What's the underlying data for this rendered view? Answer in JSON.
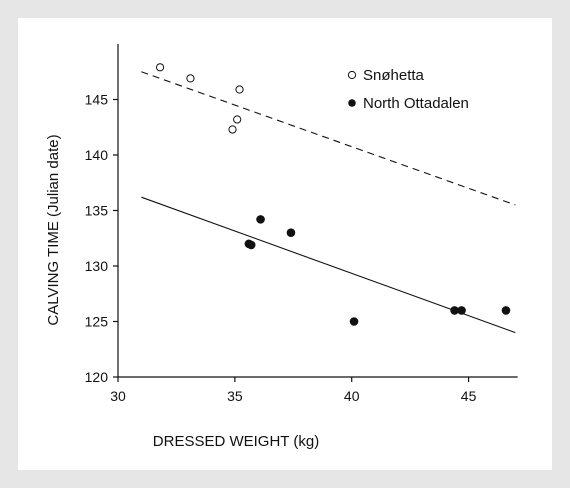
{
  "chart_data": {
    "type": "scatter",
    "xlabel": "DRESSED WEIGHT (kg)",
    "ylabel": "CALVING TIME (Julian date)",
    "xlim": [
      30,
      47.5
    ],
    "ylim": [
      120,
      150
    ],
    "xticks": [
      30,
      35,
      40,
      45
    ],
    "yticks": [
      120,
      125,
      130,
      135,
      140,
      145
    ],
    "grid": false,
    "legend_position": "top-right",
    "series": [
      {
        "name": "Snøhetta",
        "marker": "open-circle",
        "points": [
          {
            "x": 31.8,
            "y": 147.9
          },
          {
            "x": 33.1,
            "y": 146.9
          },
          {
            "x": 35.2,
            "y": 145.9
          },
          {
            "x": 35.1,
            "y": 143.2
          },
          {
            "x": 34.9,
            "y": 142.3
          }
        ],
        "trend": {
          "x": [
            31,
            47
          ],
          "y": [
            147.5,
            135.5
          ],
          "style": "dashed"
        }
      },
      {
        "name": "North Ottadalen",
        "marker": "filled-circle",
        "points": [
          {
            "x": 35.6,
            "y": 132.0
          },
          {
            "x": 35.7,
            "y": 131.9
          },
          {
            "x": 36.1,
            "y": 134.2
          },
          {
            "x": 37.4,
            "y": 133.0
          },
          {
            "x": 40.1,
            "y": 125.0
          },
          {
            "x": 44.4,
            "y": 126.0
          },
          {
            "x": 44.7,
            "y": 126.0
          },
          {
            "x": 46.6,
            "y": 126.0
          }
        ],
        "trend": {
          "x": [
            31,
            47
          ],
          "y": [
            136.2,
            124.0
          ],
          "style": "solid"
        }
      }
    ]
  }
}
